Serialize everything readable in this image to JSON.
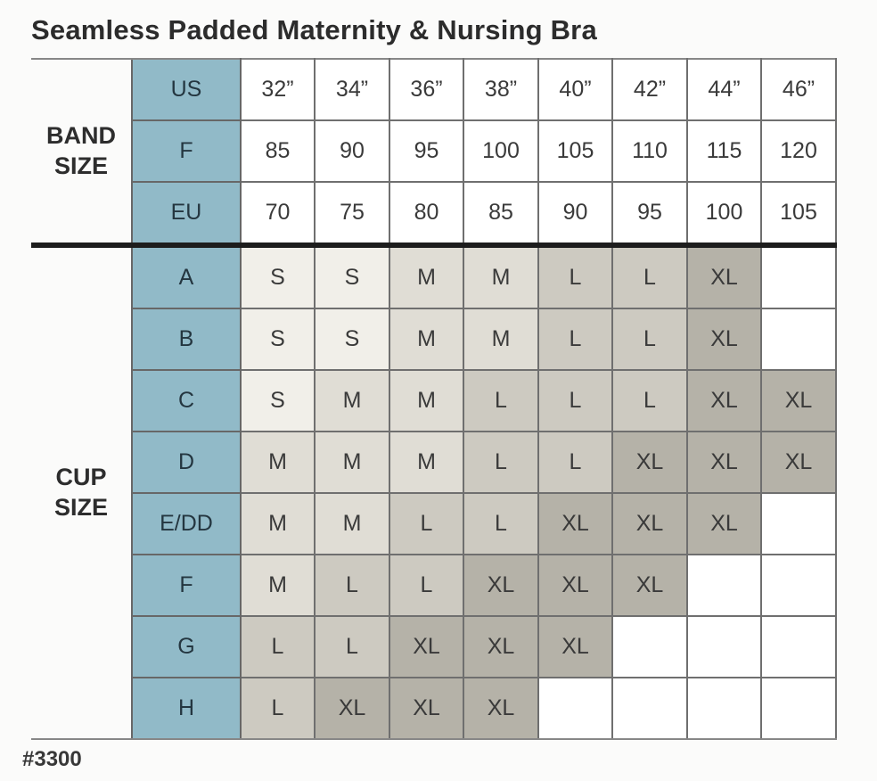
{
  "title": "Seamless Padded Maternity & Nursing Bra",
  "footer": {
    "style_number": "#3300"
  },
  "chart_data": {
    "type": "table",
    "title": "Seamless Padded Maternity & Nursing Bra",
    "band_section": {
      "label": "BAND SIZE",
      "rows": [
        {
          "label": "US",
          "values": [
            "32”",
            "34”",
            "36”",
            "38”",
            "40”",
            "42”",
            "44”",
            "46”"
          ]
        },
        {
          "label": "F",
          "values": [
            "85",
            "90",
            "95",
            "100",
            "105",
            "110",
            "115",
            "120"
          ]
        },
        {
          "label": "EU",
          "values": [
            "70",
            "75",
            "80",
            "85",
            "90",
            "95",
            "100",
            "105"
          ]
        }
      ]
    },
    "cup_section": {
      "label": "CUP SIZE",
      "rows": [
        {
          "label": "A",
          "values": [
            "S",
            "S",
            "M",
            "M",
            "L",
            "L",
            "XL",
            ""
          ]
        },
        {
          "label": "B",
          "values": [
            "S",
            "S",
            "M",
            "M",
            "L",
            "L",
            "XL",
            ""
          ]
        },
        {
          "label": "C",
          "values": [
            "S",
            "M",
            "M",
            "L",
            "L",
            "L",
            "XL",
            "XL"
          ]
        },
        {
          "label": "D",
          "values": [
            "M",
            "M",
            "M",
            "L",
            "L",
            "XL",
            "XL",
            "XL"
          ]
        },
        {
          "label": "E/DD",
          "values": [
            "M",
            "M",
            "L",
            "L",
            "XL",
            "XL",
            "XL",
            ""
          ]
        },
        {
          "label": "F",
          "values": [
            "M",
            "L",
            "L",
            "XL",
            "XL",
            "XL",
            "",
            ""
          ]
        },
        {
          "label": "G",
          "values": [
            "L",
            "L",
            "XL",
            "XL",
            "XL",
            "",
            "",
            ""
          ]
        },
        {
          "label": "H",
          "values": [
            "L",
            "XL",
            "XL",
            "XL",
            "",
            "",
            "",
            ""
          ]
        }
      ]
    },
    "size_colors": {
      "S": "#f1efe9",
      "M": "#e0ddd5",
      "L": "#cdcac1",
      "XL": "#b5b2a8",
      "empty": "#ffffff"
    },
    "header_color": "#91bac8",
    "layout": {
      "grid": true,
      "legend": "none"
    }
  }
}
